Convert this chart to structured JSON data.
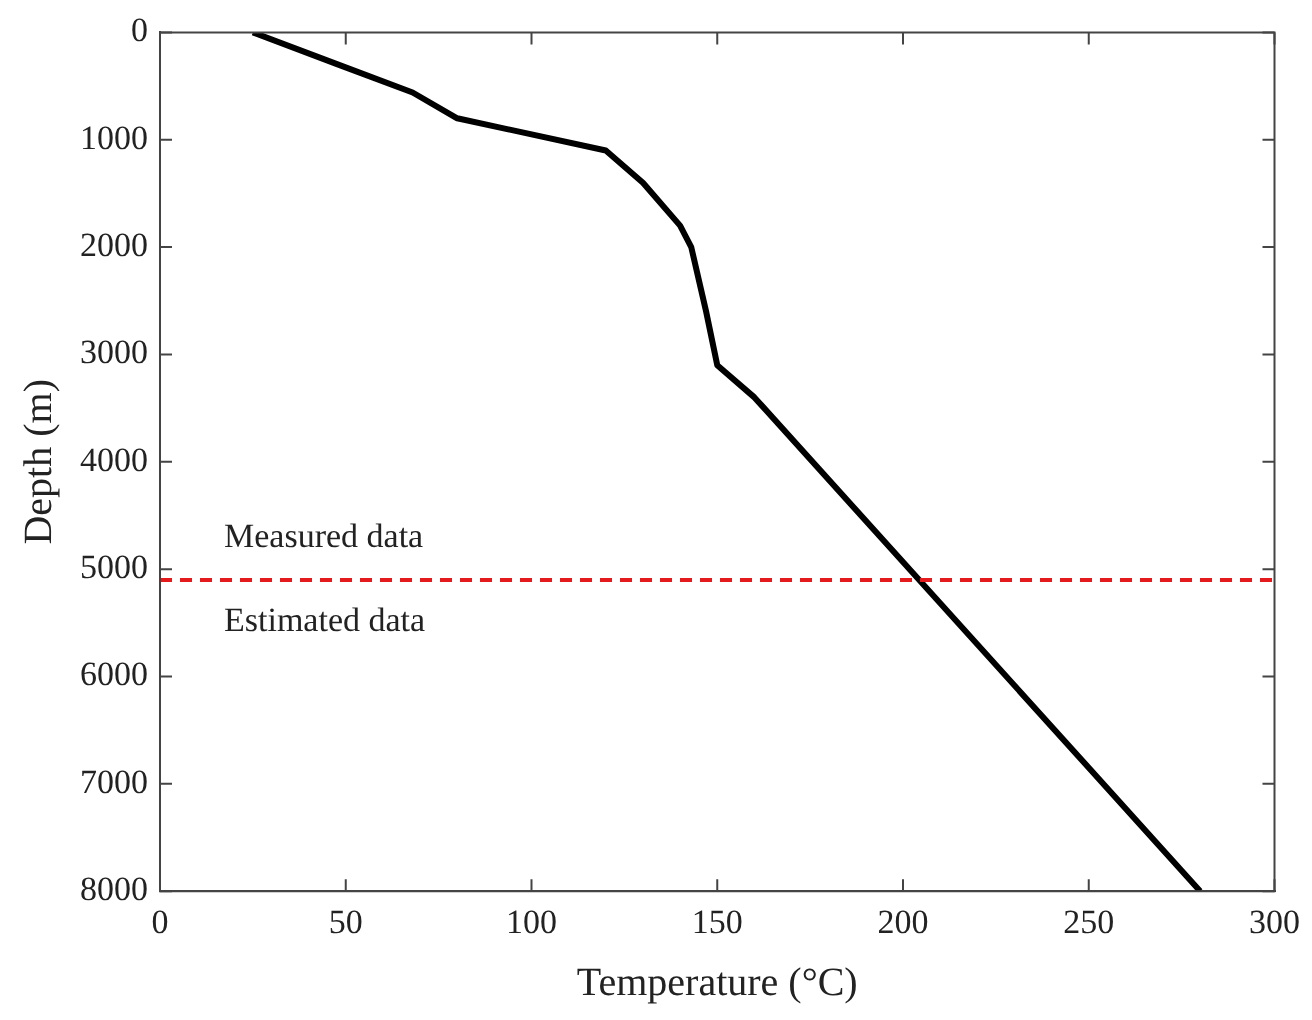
{
  "chart_data": {
    "type": "line",
    "xlabel": "Temperature (°C)",
    "ylabel": "Depth (m)",
    "xlim": [
      0,
      300
    ],
    "xticks": [
      0,
      50,
      100,
      150,
      200,
      250,
      300
    ],
    "ylim": [
      8000,
      0
    ],
    "yticks": [
      0,
      1000,
      2000,
      3000,
      4000,
      5000,
      6000,
      7000,
      8000
    ],
    "grid": false,
    "legend": false,
    "marker": "none",
    "line_style": "solid",
    "series": [
      {
        "color": "#000000",
        "x": [
          25,
          48,
          68,
          80,
          120,
          130,
          140,
          143,
          147,
          150,
          160,
          280
        ],
        "values": [
          0,
          300,
          560,
          800,
          1100,
          1400,
          1800,
          2000,
          2600,
          3100,
          3400,
          8000
        ]
      }
    ],
    "ref_lines": [
      {
        "axis": "y",
        "value": 5100,
        "color": "#e41a1c",
        "line_style": "dashed"
      }
    ],
    "annotations": [
      "Measured data",
      "Estimated data"
    ]
  }
}
